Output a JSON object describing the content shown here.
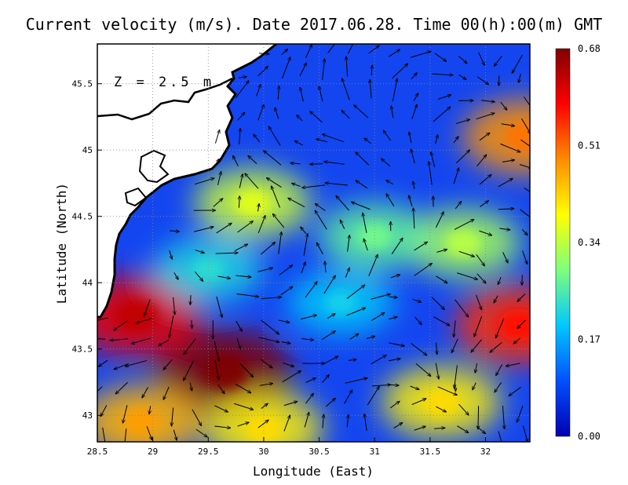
{
  "chart_data": {
    "type": "heatmap",
    "title": "Current velocity (m/s). Date 2017.06.28. Time 00(h):00(m) GMT",
    "xlabel": "Longitude (East)",
    "ylabel": "Latitude (North)",
    "xlim": [
      28.5,
      32.4
    ],
    "ylim": [
      42.8,
      45.8
    ],
    "xticks": [
      "28.5",
      "29",
      "29.5",
      "30",
      "30.5",
      "31",
      "31.5",
      "32"
    ],
    "yticks": [
      "43",
      "43.5",
      "44",
      "44.5",
      "45",
      "45.5"
    ],
    "grid": true,
    "annotation": "Z = 2.5 m",
    "colorbar": {
      "min": 0.0,
      "max": 0.68,
      "ticks": [
        "0.00",
        "0.17",
        "0.34",
        "0.51",
        "0.68"
      ],
      "colors": [
        "#0000b4",
        "#0050ff",
        "#00c8ff",
        "#7dff7d",
        "#ffff00",
        "#ff8c00",
        "#ff0000",
        "#800000"
      ]
    },
    "land_color": "#ffffff",
    "coastline_color": "#000000",
    "arrow_color": "#000000",
    "hotspots": [
      {
        "lon": 29.65,
        "lat": 43.33,
        "speed": 0.68
      },
      {
        "lon": 28.85,
        "lat": 43.75,
        "speed": 0.6
      },
      {
        "lon": 32.3,
        "lat": 43.68,
        "speed": 0.55
      },
      {
        "lon": 32.35,
        "lat": 45.1,
        "speed": 0.48
      },
      {
        "lon": 28.9,
        "lat": 42.95,
        "speed": 0.45
      },
      {
        "lon": 30.0,
        "lat": 42.9,
        "speed": 0.4
      },
      {
        "lon": 31.6,
        "lat": 43.1,
        "speed": 0.4
      },
      {
        "lon": 29.9,
        "lat": 44.6,
        "speed": 0.35
      },
      {
        "lon": 31.8,
        "lat": 44.3,
        "speed": 0.32
      },
      {
        "lon": 31.0,
        "lat": 44.35,
        "speed": 0.27
      },
      {
        "lon": 29.5,
        "lat": 44.1,
        "speed": 0.22
      },
      {
        "lon": 30.7,
        "lat": 43.85,
        "speed": 0.2
      }
    ]
  }
}
